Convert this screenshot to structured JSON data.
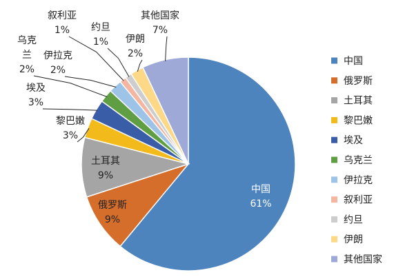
{
  "chart_data": {
    "type": "pie",
    "title": "",
    "legend_position": "right",
    "slices": [
      {
        "name": "中国",
        "value": 61,
        "pct": "61%",
        "color": "#4E84BE"
      },
      {
        "name": "俄罗斯",
        "value": 9,
        "pct": "9%",
        "color": "#D56E2B"
      },
      {
        "name": "土耳其",
        "value": 9,
        "pct": "9%",
        "color": "#A5A5A5"
      },
      {
        "name": "黎巴嫩",
        "value": 3,
        "pct": "3%",
        "color": "#F2BA1B"
      },
      {
        "name": "埃及",
        "value": 3,
        "pct": "3%",
        "color": "#3A5DA8"
      },
      {
        "name": "乌克兰",
        "value": 2,
        "pct": "2%",
        "color": "#5F9E43"
      },
      {
        "name": "伊拉克",
        "value": 2,
        "pct": "2%",
        "color": "#9DC3E6"
      },
      {
        "name": "叙利亚",
        "value": 1,
        "pct": "1%",
        "color": "#F4B5A1"
      },
      {
        "name": "约旦",
        "value": 1,
        "pct": "1%",
        "color": "#CDCDCD"
      },
      {
        "name": "伊朗",
        "value": 2,
        "pct": "2%",
        "color": "#FDD886"
      },
      {
        "name": "其他国家",
        "value": 7,
        "pct": "7%",
        "color": "#9EA9D8"
      }
    ],
    "labels": [
      {
        "lines": [
          "中国",
          "61%"
        ]
      },
      {
        "lines": [
          "俄罗斯",
          "9%"
        ]
      },
      {
        "lines": [
          "土耳其",
          "9%"
        ]
      },
      {
        "lines": [
          "黎巴嫩",
          "3%"
        ]
      },
      {
        "lines": [
          "埃及",
          "3%"
        ]
      },
      {
        "lines": [
          "乌克",
          "兰",
          "2%"
        ]
      },
      {
        "lines": [
          "伊拉克",
          "2%"
        ]
      },
      {
        "lines": [
          "叙利亚",
          "1%"
        ]
      },
      {
        "lines": [
          "约旦",
          "1%"
        ]
      },
      {
        "lines": [
          "伊朗",
          "2%"
        ]
      },
      {
        "lines": [
          "其他国家",
          "7%"
        ]
      }
    ]
  }
}
